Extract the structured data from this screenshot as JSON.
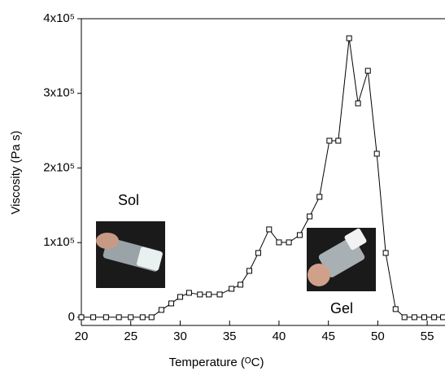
{
  "chart_data": {
    "type": "line",
    "x_label": "Temperature (ᴼC)",
    "y_label": "Viscosity (Pa s)",
    "annotations": [
      "Sol",
      "Gel"
    ],
    "xlim": [
      20,
      56.8
    ],
    "xticks": [
      20,
      25,
      30,
      35,
      40,
      45,
      50,
      55
    ],
    "ylim": [
      -11000,
      400000
    ],
    "yticks": [
      0,
      {
        "value": 100000,
        "label": "1x10⁵"
      },
      {
        "value": 200000,
        "label": "2x10⁵"
      },
      {
        "value": 300000,
        "label": "3x10⁵"
      },
      {
        "value": 400000,
        "label": "4x10⁵"
      }
    ],
    "color": "#000000",
    "x": [
      20.0,
      21.2,
      22.5,
      23.8,
      25.0,
      26.2,
      27.1,
      28.1,
      29.1,
      30.0,
      30.9,
      32.0,
      32.9,
      34.0,
      35.2,
      36.1,
      37.0,
      37.9,
      39.0,
      40.0,
      41.0,
      42.1,
      43.1,
      44.1,
      45.1,
      46.0,
      47.1,
      48.0,
      49.0,
      49.9,
      50.8,
      51.8,
      52.7,
      53.7,
      54.7,
      55.7,
      56.6
    ],
    "values": [
      0,
      0,
      0,
      0,
      0,
      0,
      0,
      9800,
      18500,
      27200,
      32700,
      30500,
      30500,
      30500,
      38100,
      43600,
      62100,
      86100,
      117700,
      100300,
      100300,
      110100,
      135100,
      161300,
      236500,
      236500,
      373800,
      286600,
      330200,
      219100,
      86100,
      10900,
      0,
      0,
      0,
      0,
      0
    ]
  }
}
